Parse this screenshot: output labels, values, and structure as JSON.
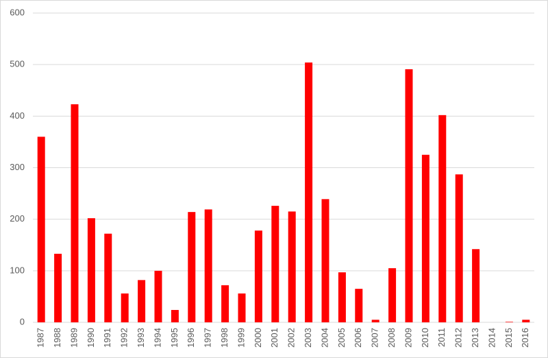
{
  "chart_data": {
    "type": "bar",
    "categories": [
      "1987",
      "1988",
      "1989",
      "1990",
      "1991",
      "1992",
      "1993",
      "1994",
      "1995",
      "1996",
      "1997",
      "1998",
      "1999",
      "2000",
      "2001",
      "2002",
      "2003",
      "2004",
      "2005",
      "2006",
      "2007",
      "2008",
      "2009",
      "2010",
      "2011",
      "2012",
      "2013",
      "2014",
      "2015",
      "2016"
    ],
    "values": [
      360,
      133,
      423,
      202,
      172,
      56,
      82,
      100,
      24,
      214,
      219,
      72,
      56,
      178,
      226,
      215,
      504,
      239,
      97,
      65,
      5,
      105,
      491,
      325,
      402,
      287,
      142,
      0,
      1,
      5
    ],
    "color": "#ff0000",
    "ylim": [
      0,
      600
    ],
    "yticks": [
      0,
      100,
      200,
      300,
      400,
      500,
      600
    ],
    "grid": true
  }
}
